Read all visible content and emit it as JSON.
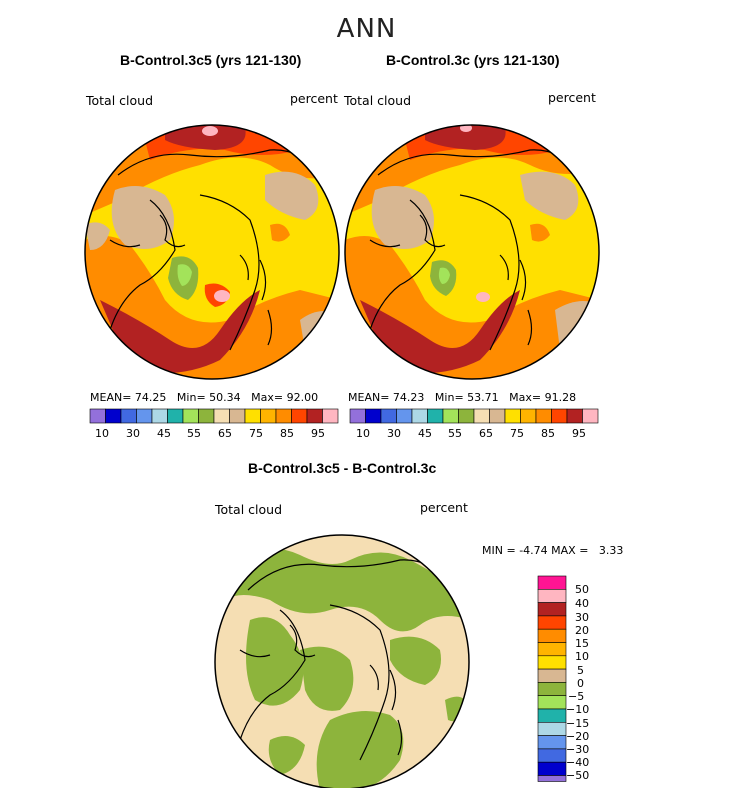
{
  "main_title": "ANN",
  "colors": {
    "purple": "#9370db",
    "navy": "#0000cd",
    "royal": "#4169e1",
    "cornflower": "#6495ed",
    "lightblue": "#add8e6",
    "teal": "#20b2aa",
    "lightgreen": "#a3e35a",
    "green": "#8db43c",
    "beige": "#f5deb3",
    "tan": "#d8b792",
    "yellow": "#ffe000",
    "gold": "#ffb400",
    "orange": "#ff8c00",
    "darkorange": "#ff4500",
    "firebrick": "#b22222",
    "pink": "#ffb6c1",
    "magenta": "#ff1493",
    "coast": "#000000"
  },
  "chart_data": [
    {
      "type": "heatmap",
      "title": "B-Control.3c5 (yrs 121-130)",
      "variable_label": "Total cloud",
      "units_label": "percent",
      "stats": {
        "mean_label": "MEAN=",
        "mean": "74.25",
        "min_label": "Min=",
        "min": "50.34",
        "max_label": "Max=",
        "max": "92.00"
      },
      "colorbar_ticks": [
        "10",
        "30",
        "45",
        "55",
        "65",
        "75",
        "85",
        "95"
      ],
      "colorbar_levels": [
        10,
        20,
        30,
        40,
        45,
        50,
        55,
        60,
        65,
        70,
        75,
        80,
        85,
        90,
        95
      ]
    },
    {
      "type": "heatmap",
      "title": "B-Control.3c (yrs 121-130)",
      "variable_label": "Total cloud",
      "units_label": "percent",
      "stats": {
        "mean_label": "MEAN=",
        "mean": "74.23",
        "min_label": "Min=",
        "min": "53.71",
        "max_label": "Max=",
        "max": "91.28"
      },
      "colorbar_ticks": [
        "10",
        "30",
        "45",
        "55",
        "65",
        "75",
        "85",
        "95"
      ],
      "colorbar_levels": [
        10,
        20,
        30,
        40,
        45,
        50,
        55,
        60,
        65,
        70,
        75,
        80,
        85,
        90,
        95
      ]
    },
    {
      "type": "heatmap",
      "title": "B-Control.3c5 - B-Control.3c",
      "variable_label": "Total cloud",
      "units_label": "percent",
      "minmax": {
        "min_label": "MIN =",
        "min": "-4.74",
        "max_label": "MAX =",
        "max": "3.33"
      },
      "colorbar_ticks": [
        "50",
        "40",
        "30",
        "20",
        "15",
        "10",
        "5",
        "0",
        "−5",
        "−10",
        "−15",
        "−20",
        "−30",
        "−40",
        "−50"
      ]
    }
  ]
}
